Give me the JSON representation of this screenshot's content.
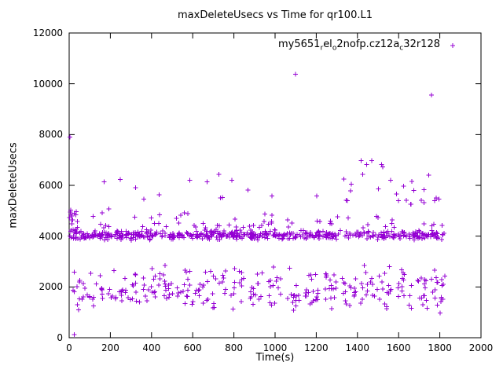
{
  "chart_data": {
    "type": "scatter",
    "title": "maxDeleteUsecs vs Time for qr100.L1",
    "xlabel": "Time(s)",
    "ylabel": "maxDeleteUsecs",
    "xlim": [
      0,
      2000
    ],
    "ylim": [
      0,
      12000
    ],
    "xticks": [
      0,
      200,
      400,
      600,
      800,
      1000,
      1200,
      1400,
      1600,
      1800,
      2000
    ],
    "yticks": [
      0,
      2000,
      4000,
      6000,
      8000,
      10000,
      12000
    ],
    "grid": false,
    "marker": "plus",
    "color": "#9400d3",
    "legend": {
      "position": "top-right-inside",
      "series": [
        {
          "label_plain": "my5651_rel_o2nofp.cz12a_c32r128",
          "label_segments": [
            {
              "t": "my5651"
            },
            {
              "sub": "r"
            },
            {
              "t": "el"
            },
            {
              "sub": "o"
            },
            {
              "t": "2nofp.cz12a"
            },
            {
              "sub": "c"
            },
            {
              "t": "32r128"
            }
          ],
          "marker": "plus",
          "color": "#9400d3"
        }
      ]
    },
    "point_generation": {
      "seed": 1337,
      "bands": [
        {
          "count": 520,
          "x": [
            2,
            1822
          ],
          "y": [
            3830,
            4270
          ],
          "dist": "tri"
        },
        {
          "count": 18,
          "x": [
            2,
            42
          ],
          "y": [
            4150,
            5050
          ],
          "dist": "uni"
        },
        {
          "count": 40,
          "x": [
            30,
            1815
          ],
          "y": [
            1250,
            2750
          ],
          "dist": "uni"
        },
        {
          "count": 62,
          "x": [
            10,
            1818
          ],
          "y": [
            4330,
            5300
          ],
          "dist": "low"
        },
        {
          "count": 24,
          "x": [
            80,
            1810
          ],
          "y": [
            5400,
            6550
          ],
          "dist": "uni"
        },
        {
          "count": 6,
          "x": [
            1340,
            1550
          ],
          "y": [
            6350,
            7100
          ],
          "dist": "uni"
        },
        {
          "count": 12,
          "x": [
            1580,
            1805
          ],
          "y": [
            5200,
            6450
          ],
          "dist": "uni"
        }
      ],
      "clusters": {
        "centers": [
          45,
          130,
          225,
          300,
          390,
          470,
          560,
          640,
          730,
          820,
          910,
          1000,
          1090,
          1180,
          1270,
          1360,
          1450,
          1540,
          1630,
          1720,
          1790
        ],
        "count_each": 13,
        "x_spread": 70,
        "y": [
          1000,
          2900
        ],
        "dist": "tri"
      }
    },
    "outlier_points": [
      [
        3,
        7900
      ],
      [
        1100,
        10380
      ],
      [
        1760,
        9550
      ],
      [
        25,
        120
      ],
      [
        1802,
        980
      ]
    ]
  }
}
